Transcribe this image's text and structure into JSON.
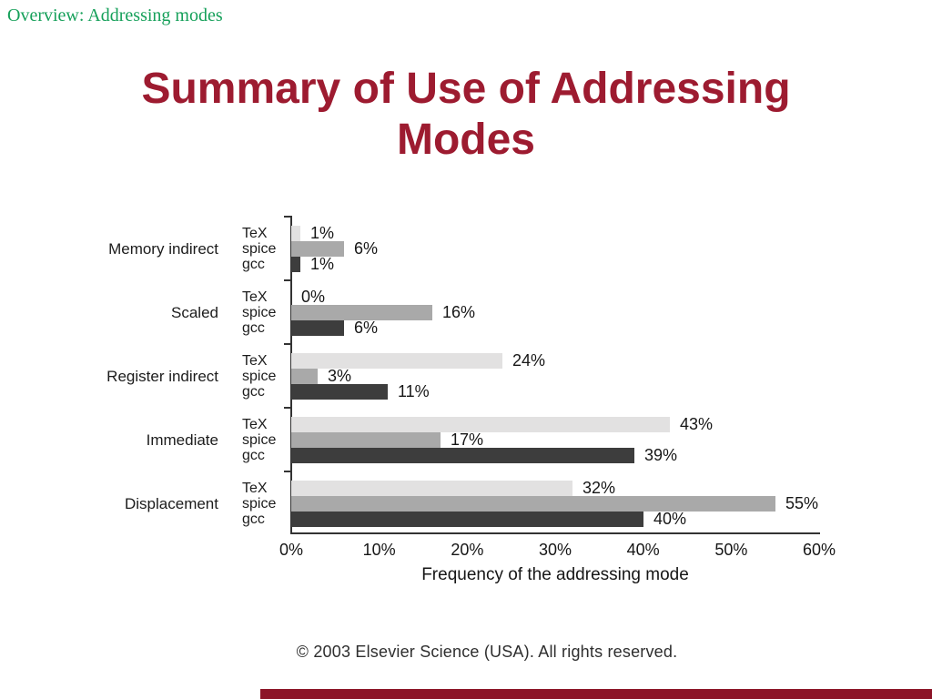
{
  "slide": {
    "header": "Overview: Addressing modes",
    "title_line1": "Summary of Use of Addressing",
    "title_line2": "Modes",
    "copyright": "© 2003 Elsevier Science (USA). All rights reserved.",
    "colors": {
      "header_green": "#16a05a",
      "title_maroon": "#9d1b30",
      "footer_bar": "#8c1528",
      "chart_text": "#1e1e1e"
    }
  },
  "chart_data": {
    "type": "bar",
    "orientation": "horizontal",
    "title": "",
    "xlabel": "Frequency of the addressing mode",
    "ylabel": "",
    "xlim": [
      0,
      60
    ],
    "grid": false,
    "legend_position": "per-bar-left-labels",
    "x_tick_values": [
      0,
      10,
      20,
      30,
      40,
      50,
      60
    ],
    "x_tick_labels": [
      "0%",
      "10%",
      "20%",
      "30%",
      "40%",
      "50%",
      "60%"
    ],
    "categories": [
      "Memory indirect",
      "Scaled",
      "Register indirect",
      "Immediate",
      "Displacement"
    ],
    "series": [
      {
        "name": "TeX",
        "color": "#e2e1e1",
        "values": [
          1,
          0,
          24,
          43,
          32
        ]
      },
      {
        "name": "spice",
        "color": "#a9a9a9",
        "values": [
          6,
          16,
          3,
          17,
          55
        ]
      },
      {
        "name": "gcc",
        "color": "#3d3d3d",
        "values": [
          1,
          6,
          11,
          39,
          40
        ]
      }
    ],
    "value_suffix": "%"
  }
}
